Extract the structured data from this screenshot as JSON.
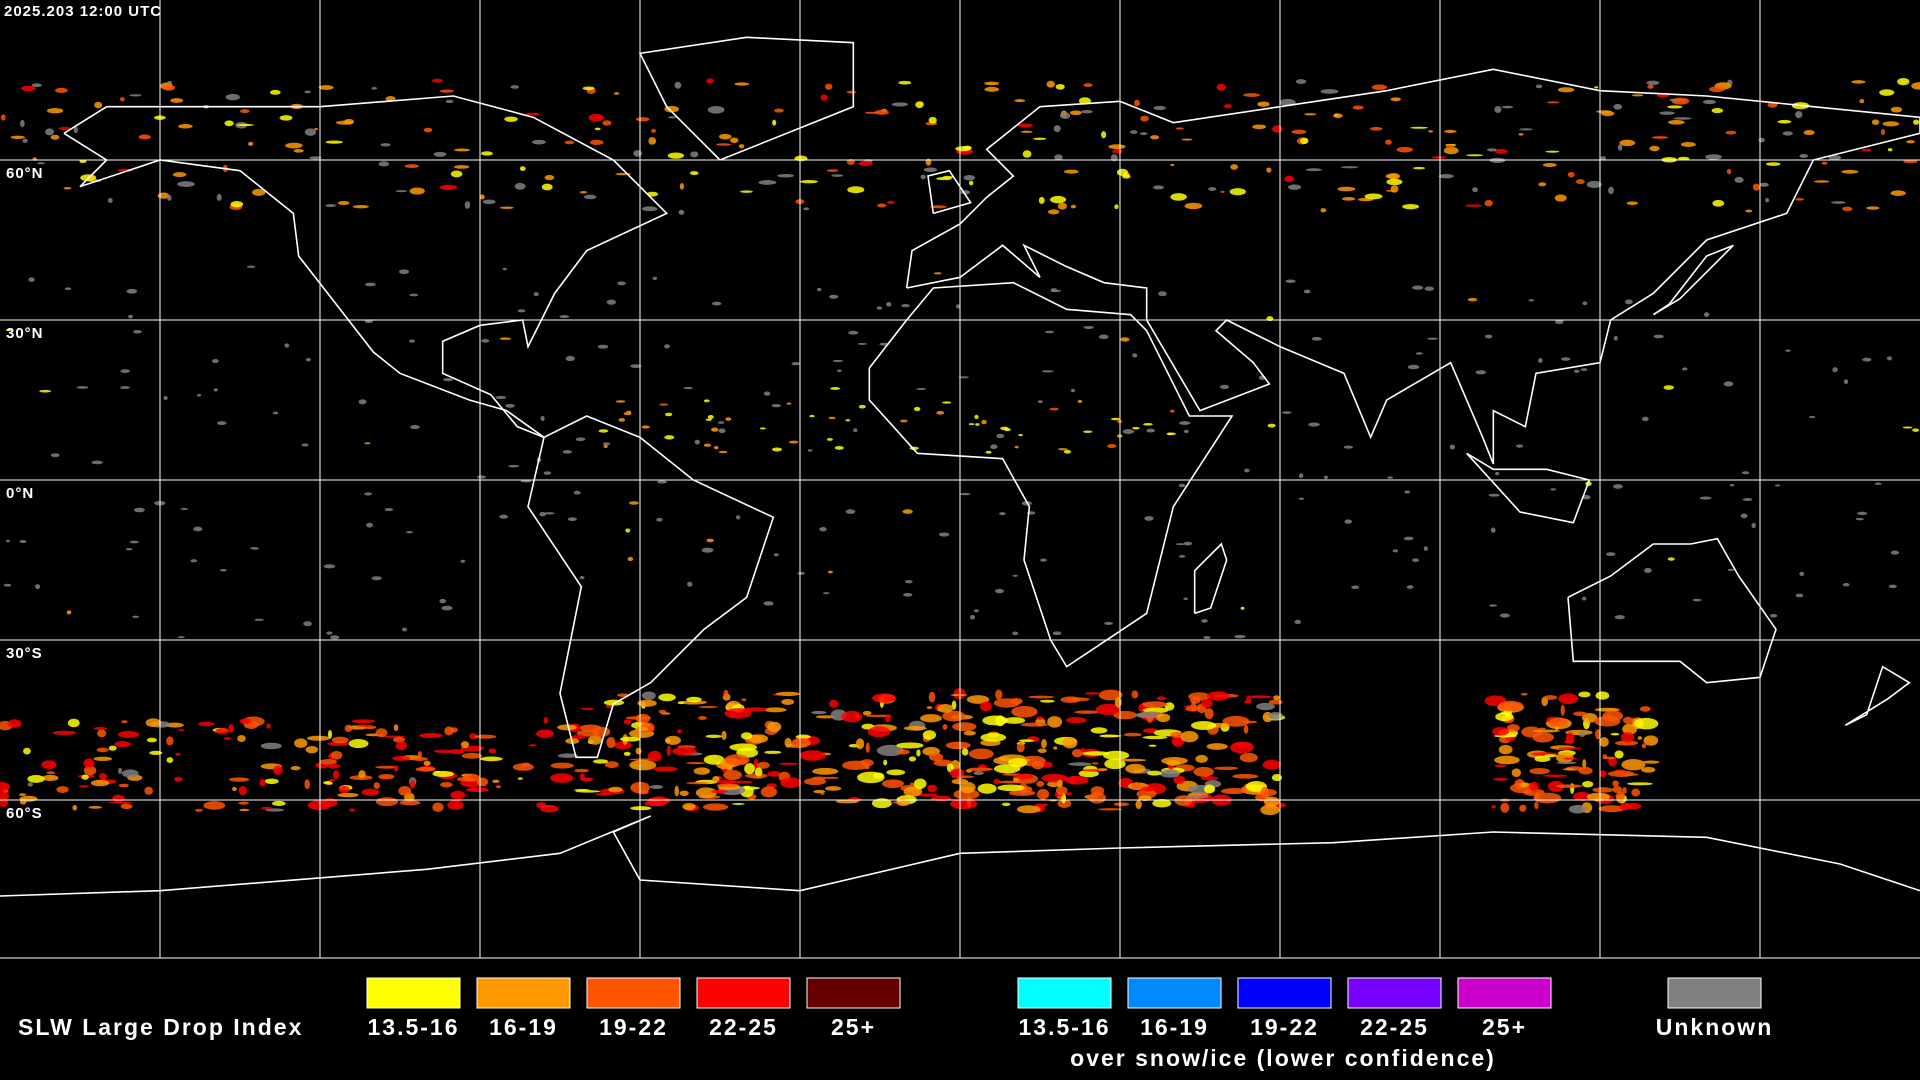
{
  "header": {
    "timestamp": "2025.203 12:00 UTC"
  },
  "grid": {
    "lat_labels": [
      "60°N",
      "30°N",
      "0°N",
      "30°S",
      "60°S"
    ]
  },
  "legend": {
    "title": "SLW Large Drop Index",
    "water": [
      {
        "label": "13.5-16",
        "color": "#ffff00"
      },
      {
        "label": "16-19",
        "color": "#ff9900"
      },
      {
        "label": "19-22",
        "color": "#ff5500"
      },
      {
        "label": "22-25",
        "color": "#ff0000"
      },
      {
        "label": "25+",
        "color": "#660000"
      }
    ],
    "snow": [
      {
        "label": "13.5-16",
        "color": "#00ffff"
      },
      {
        "label": "16-19",
        "color": "#0088ff"
      },
      {
        "label": "19-22",
        "color": "#0000ff"
      },
      {
        "label": "22-25",
        "color": "#7700ff"
      },
      {
        "label": "25+",
        "color": "#cc00cc"
      }
    ],
    "snow_caption": "over snow/ice (lower confidence)",
    "unknown": {
      "label": "Unknown",
      "color": "#808080"
    }
  }
}
